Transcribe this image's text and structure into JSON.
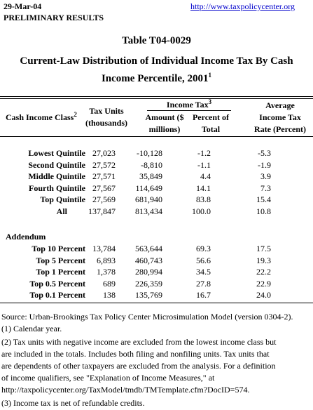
{
  "header": {
    "date": "29-Mar-04",
    "status": "PRELIMINARY RESULTS",
    "link": "http://www.taxpolicycenter.org"
  },
  "title": {
    "table_id": "Table T04-0029",
    "line1": "Current-Law Distribution of Individual Income Tax By Cash",
    "line2": "Income Percentile, 2001",
    "footnote": "1"
  },
  "table": {
    "columns": {
      "class": {
        "label": "Cash Income Class",
        "footnote": "2"
      },
      "units": [
        "Tax Units",
        "(thousands)"
      ],
      "income_tax": {
        "label": "Income Tax",
        "footnote": "3"
      },
      "amount": [
        "Amount ($",
        "millions)"
      ],
      "percent": [
        "Percent of",
        "Total"
      ],
      "rate": [
        "Average",
        "Income Tax",
        "Rate (Percent)"
      ]
    },
    "rows": [
      [
        "Lowest Quintile",
        "27,023",
        "-10,128",
        "-1.2",
        "-5.3"
      ],
      [
        "Second Quintile",
        "27,572",
        "-8,810",
        "-1.1",
        "-1.9"
      ],
      [
        "Middle Quintile",
        "27,571",
        "35,849",
        "4.4",
        "3.9"
      ],
      [
        "Fourth Quintile",
        "27,567",
        "114,649",
        "14.1",
        "7.3"
      ],
      [
        "Top Quintile",
        "27,569",
        "681,940",
        "83.8",
        "15.4"
      ],
      [
        "All",
        "137,847",
        "813,434",
        "100.0",
        "10.8"
      ]
    ],
    "addendum_label": "Addendum",
    "addendum_rows": [
      [
        "Top 10 Percent",
        "13,784",
        "563,644",
        "69.3",
        "17.5"
      ],
      [
        "Top 5 Percent",
        "6,893",
        "460,743",
        "56.6",
        "19.3"
      ],
      [
        "Top 1 Percent",
        "1,378",
        "280,994",
        "34.5",
        "22.2"
      ],
      [
        "Top 0.5 Percent",
        "689",
        "226,359",
        "27.8",
        "22.9"
      ],
      [
        "Top 0.1 Percent",
        "138",
        "135,769",
        "16.7",
        "24.0"
      ]
    ]
  },
  "notes": [
    "Source: Urban-Brookings Tax Policy Center Microsimulation Model (version 0304-2).",
    "(1) Calendar year.",
    "(2) Tax units with negative income are excluded from the lowest income class but",
    "are included in the totals. Includes both filing and nonfiling units.  Tax units that",
    "are dependents of other taxpayers are excluded from the analysis.  For a definition",
    "of income qualifiers, see \"Explanation of Income Measures,\" at",
    "http://taxpolicycenter.org/TaxModel/tmdb/TMTemplate.cfm?DocID=574.",
    "(3) Income tax is net of refundable credits."
  ]
}
